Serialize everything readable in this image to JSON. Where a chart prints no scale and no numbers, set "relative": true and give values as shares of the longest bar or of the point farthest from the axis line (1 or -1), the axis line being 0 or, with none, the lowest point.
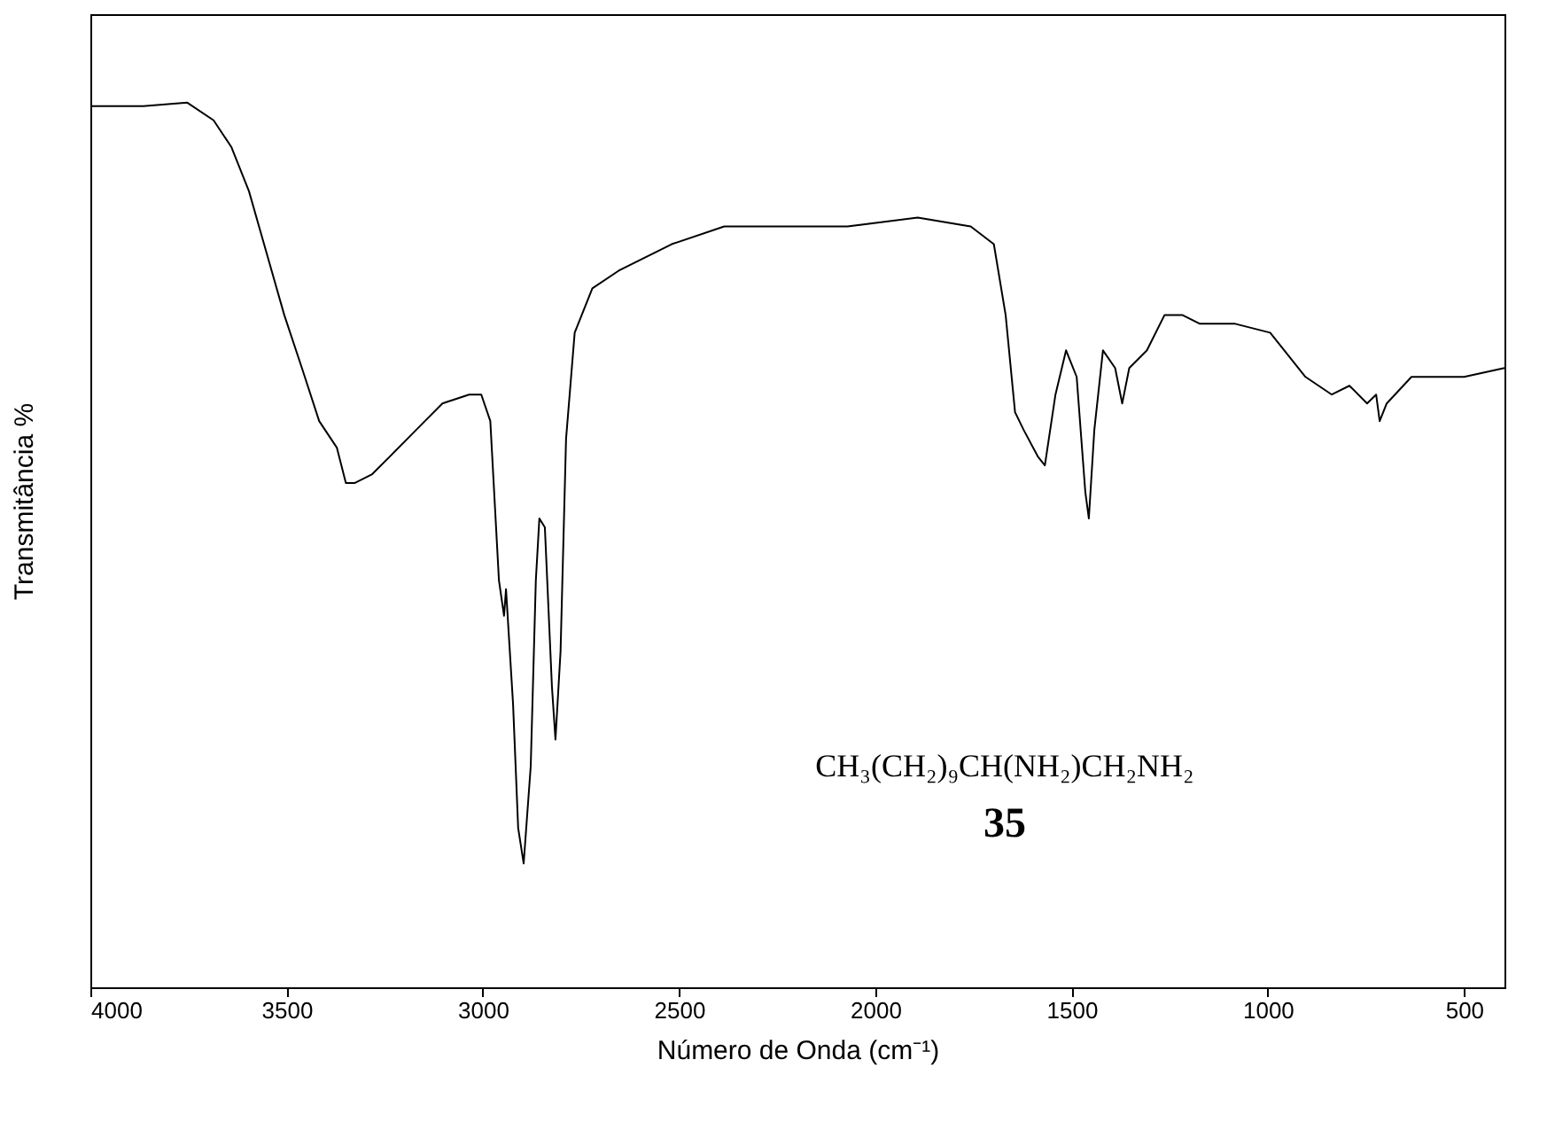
{
  "chart_data": {
    "type": "line",
    "relative": true,
    "xlabel": "Número de Onda (cm⁻¹)",
    "ylabel": "Transmitância %",
    "xlim": [
      4000,
      397
    ],
    "xticks": [
      4000,
      3500,
      3000,
      2500,
      2000,
      1500,
      1000,
      500
    ],
    "annotations": [
      "CH₃(CH₂)₉CH(NH₂)CH₂NH₂",
      "35"
    ],
    "x": [
      4000,
      3865,
      3753,
      3686,
      3641,
      3596,
      3551,
      3506,
      3461,
      3417,
      3372,
      3349,
      3327,
      3282,
      3237,
      3170,
      3103,
      3035,
      3004,
      2981,
      2959,
      2946,
      2941,
      2923,
      2910,
      2896,
      2878,
      2865,
      2856,
      2842,
      2824,
      2815,
      2802,
      2788,
      2766,
      2721,
      2654,
      2519,
      2385,
      2071,
      1892,
      1757,
      1698,
      1668,
      1644,
      1622,
      1586,
      1568,
      1541,
      1514,
      1487,
      1465,
      1456,
      1442,
      1420,
      1389,
      1371,
      1353,
      1308,
      1263,
      1218,
      1173,
      1083,
      994,
      904,
      837,
      792,
      747,
      724,
      715,
      697,
      634,
      500,
      397
    ],
    "series": [
      {
        "color": "#000000",
        "values": [
          0.996,
          0.996,
          1.0,
          0.98,
          0.95,
          0.9,
          0.83,
          0.76,
          0.7,
          0.64,
          0.61,
          0.57,
          0.57,
          0.58,
          0.6,
          0.63,
          0.66,
          0.67,
          0.67,
          0.64,
          0.46,
          0.42,
          0.45,
          0.32,
          0.18,
          0.14,
          0.25,
          0.46,
          0.53,
          0.52,
          0.34,
          0.28,
          0.38,
          0.62,
          0.74,
          0.79,
          0.81,
          0.84,
          0.86,
          0.86,
          0.87,
          0.86,
          0.84,
          0.76,
          0.65,
          0.63,
          0.6,
          0.59,
          0.67,
          0.72,
          0.69,
          0.56,
          0.53,
          0.63,
          0.72,
          0.7,
          0.66,
          0.7,
          0.72,
          0.76,
          0.76,
          0.75,
          0.75,
          0.74,
          0.69,
          0.67,
          0.68,
          0.66,
          0.67,
          0.64,
          0.66,
          0.69,
          0.69,
          0.7
        ]
      }
    ]
  }
}
